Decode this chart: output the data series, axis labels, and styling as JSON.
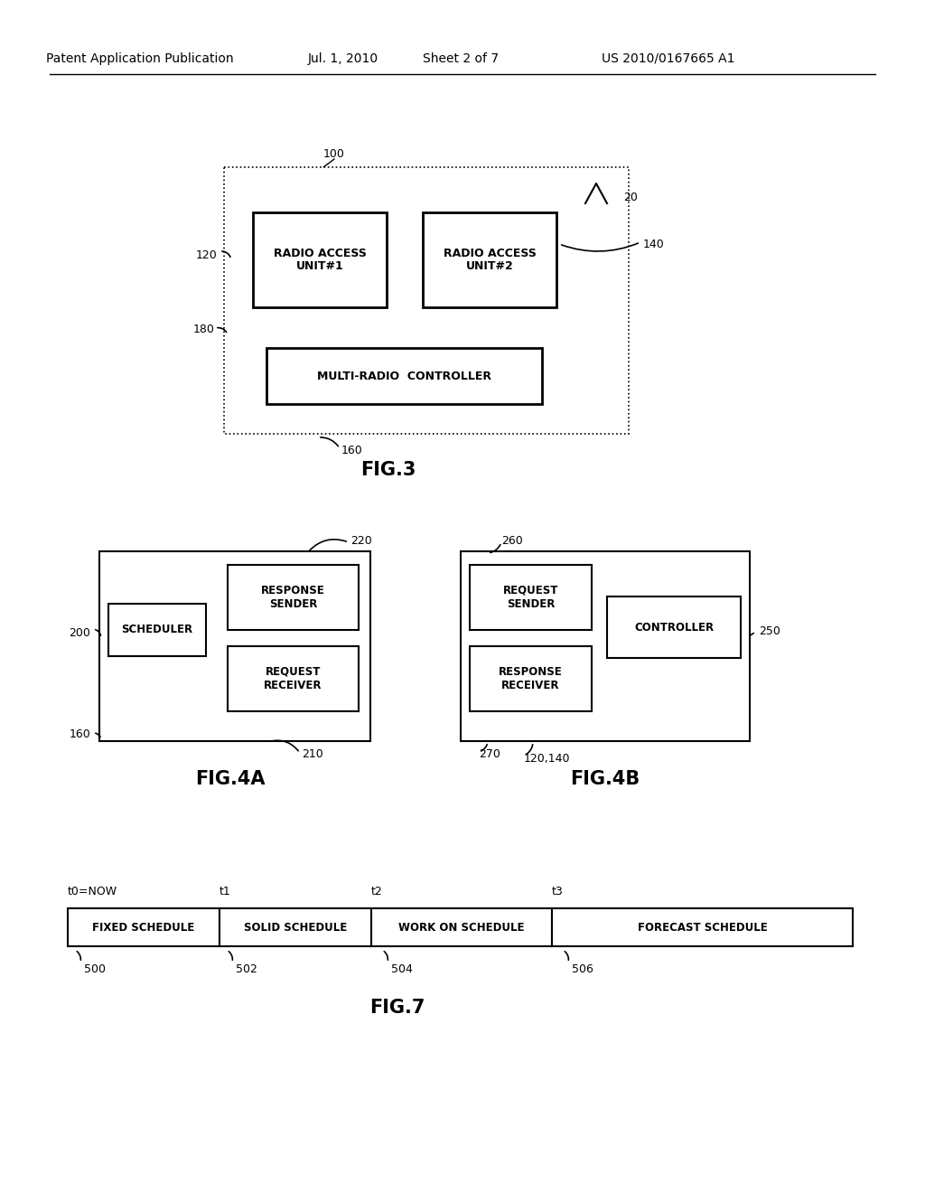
{
  "bg_color": "#ffffff",
  "header_text1": "Patent Application Publication",
  "header_text2": "Jul. 1, 2010",
  "header_text3": "Sheet 2 of 7",
  "header_text4": "US 2010/0167665 A1",
  "fig3_label": "FIG.3",
  "fig4a_label": "FIG.4A",
  "fig4b_label": "FIG.4B",
  "fig7_label": "FIG.7",
  "text_color": "#000000",
  "fig3": {
    "label_100": "100",
    "label_20": "20",
    "label_120": "120",
    "label_140": "140",
    "label_180": "180",
    "label_160": "160",
    "rau1_text": "RADIO ACCESS\nUNIT#1",
    "rau2_text": "RADIO ACCESS\nUNIT#2",
    "mrc_text": "MULTI-RADIO  CONTROLLER"
  },
  "fig4a": {
    "label_200": "200",
    "label_160": "160",
    "label_210": "210",
    "label_220": "220",
    "scheduler_text": "SCHEDULER",
    "response_sender_text": "RESPONSE\nSENDER",
    "request_receiver_text": "REQUEST\nRECEIVER"
  },
  "fig4b": {
    "label_250": "250",
    "label_260": "260",
    "label_270": "270",
    "label_120140": "120,140",
    "request_sender_text": "REQUEST\nSENDER",
    "response_receiver_text": "RESPONSE\nRECEIVER",
    "controller_text": "CONTROLLER"
  },
  "fig7": {
    "label_t0": "t0=NOW",
    "label_t1": "t1",
    "label_t2": "t2",
    "label_t3": "t3",
    "label_500": "500",
    "label_502": "502",
    "label_504": "504",
    "label_506": "506",
    "box1_text": "FIXED SCHEDULE",
    "box2_text": "SOLID SCHEDULE",
    "box3_text": "WORK ON SCHEDULE",
    "box4_text": "FORECAST SCHEDULE"
  }
}
